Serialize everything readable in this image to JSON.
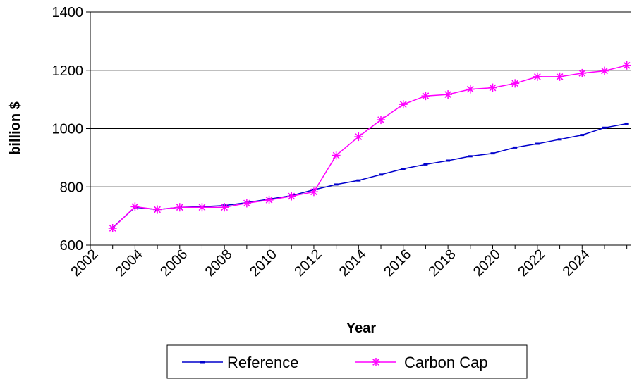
{
  "chart_data": {
    "type": "line",
    "title": "",
    "xlabel": "Year",
    "ylabel": "billion $",
    "ylim": [
      600,
      1400
    ],
    "yticks": [
      600,
      800,
      1000,
      1200,
      1400
    ],
    "xticks": [
      2002,
      2004,
      2006,
      2008,
      2010,
      2012,
      2014,
      2016,
      2018,
      2020,
      2022,
      2024
    ],
    "x": [
      2003,
      2004,
      2005,
      2006,
      2007,
      2008,
      2009,
      2010,
      2011,
      2012,
      2013,
      2014,
      2015,
      2016,
      2017,
      2018,
      2019,
      2020,
      2021,
      2022,
      2023,
      2024,
      2025,
      2026
    ],
    "grid": "horizontal",
    "legend_position": "bottom",
    "series": [
      {
        "name": "Reference",
        "color": "#0000cc",
        "marker": "dash",
        "values": [
          660,
          730,
          722,
          730,
          732,
          736,
          746,
          758,
          770,
          790,
          808,
          822,
          842,
          862,
          877,
          890,
          905,
          915,
          935,
          948,
          963,
          978,
          1003,
          1017
        ]
      },
      {
        "name": "Carbon Cap",
        "color": "#ff00ff",
        "marker": "asterisk",
        "values": [
          658,
          732,
          722,
          730,
          730,
          730,
          744,
          755,
          768,
          783,
          908,
          972,
          1030,
          1083,
          1112,
          1117,
          1135,
          1140,
          1155,
          1178,
          1178,
          1190,
          1198,
          1217
        ]
      }
    ]
  }
}
